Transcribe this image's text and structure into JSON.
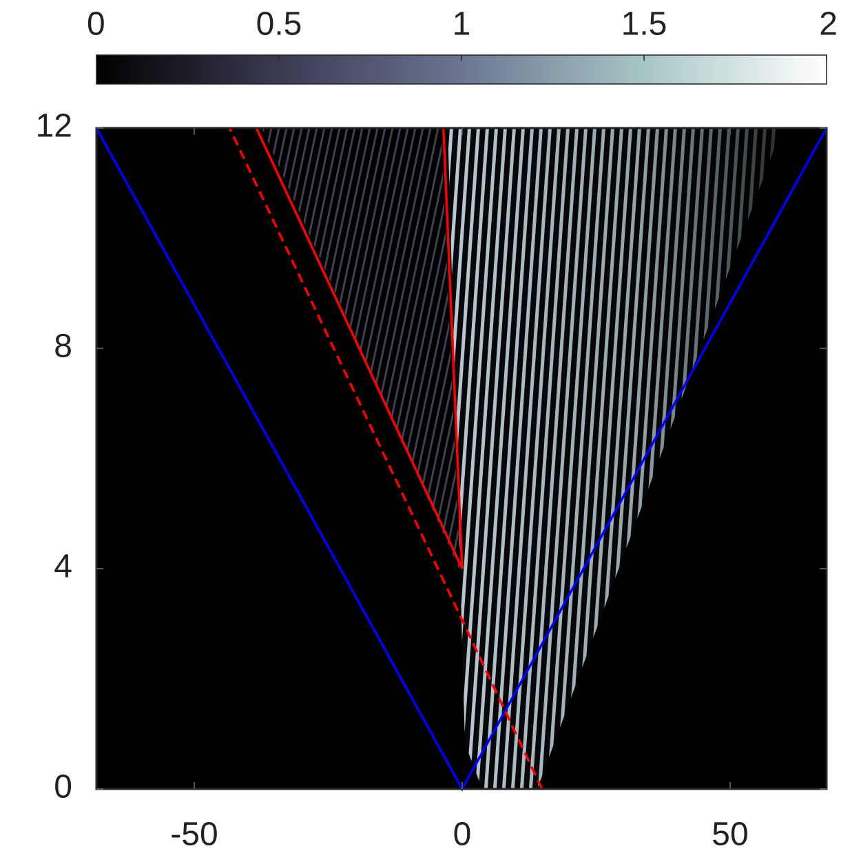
{
  "chart_data": {
    "type": "line",
    "xlim": [
      -68.25,
      68
    ],
    "ylim": [
      0,
      12
    ],
    "xticks": [
      -50,
      0,
      50
    ],
    "yticks": [
      0,
      4,
      8,
      12
    ],
    "clim": [
      0,
      2
    ],
    "cticks": [
      0,
      0.5,
      1,
      1.5,
      2
    ],
    "colormap": [
      "#000000",
      "#3a3a52",
      "#6b7590",
      "#a8c6c6",
      "#ffffff"
    ],
    "series": [
      {
        "color": "#0000ff",
        "linestyle": "solid",
        "x": [
          -68.25,
          0,
          68
        ],
        "values": [
          12,
          0,
          12
        ]
      },
      {
        "color": "#ff0000",
        "linestyle": "solid",
        "x": [
          -38.4,
          0,
          -3.5
        ],
        "values": [
          12,
          4,
          12
        ]
      },
      {
        "color": "#ff0000",
        "linestyle": "dashed",
        "x": [
          14.9,
          -43.4
        ],
        "values": [
          0,
          12
        ]
      }
    ]
  }
}
